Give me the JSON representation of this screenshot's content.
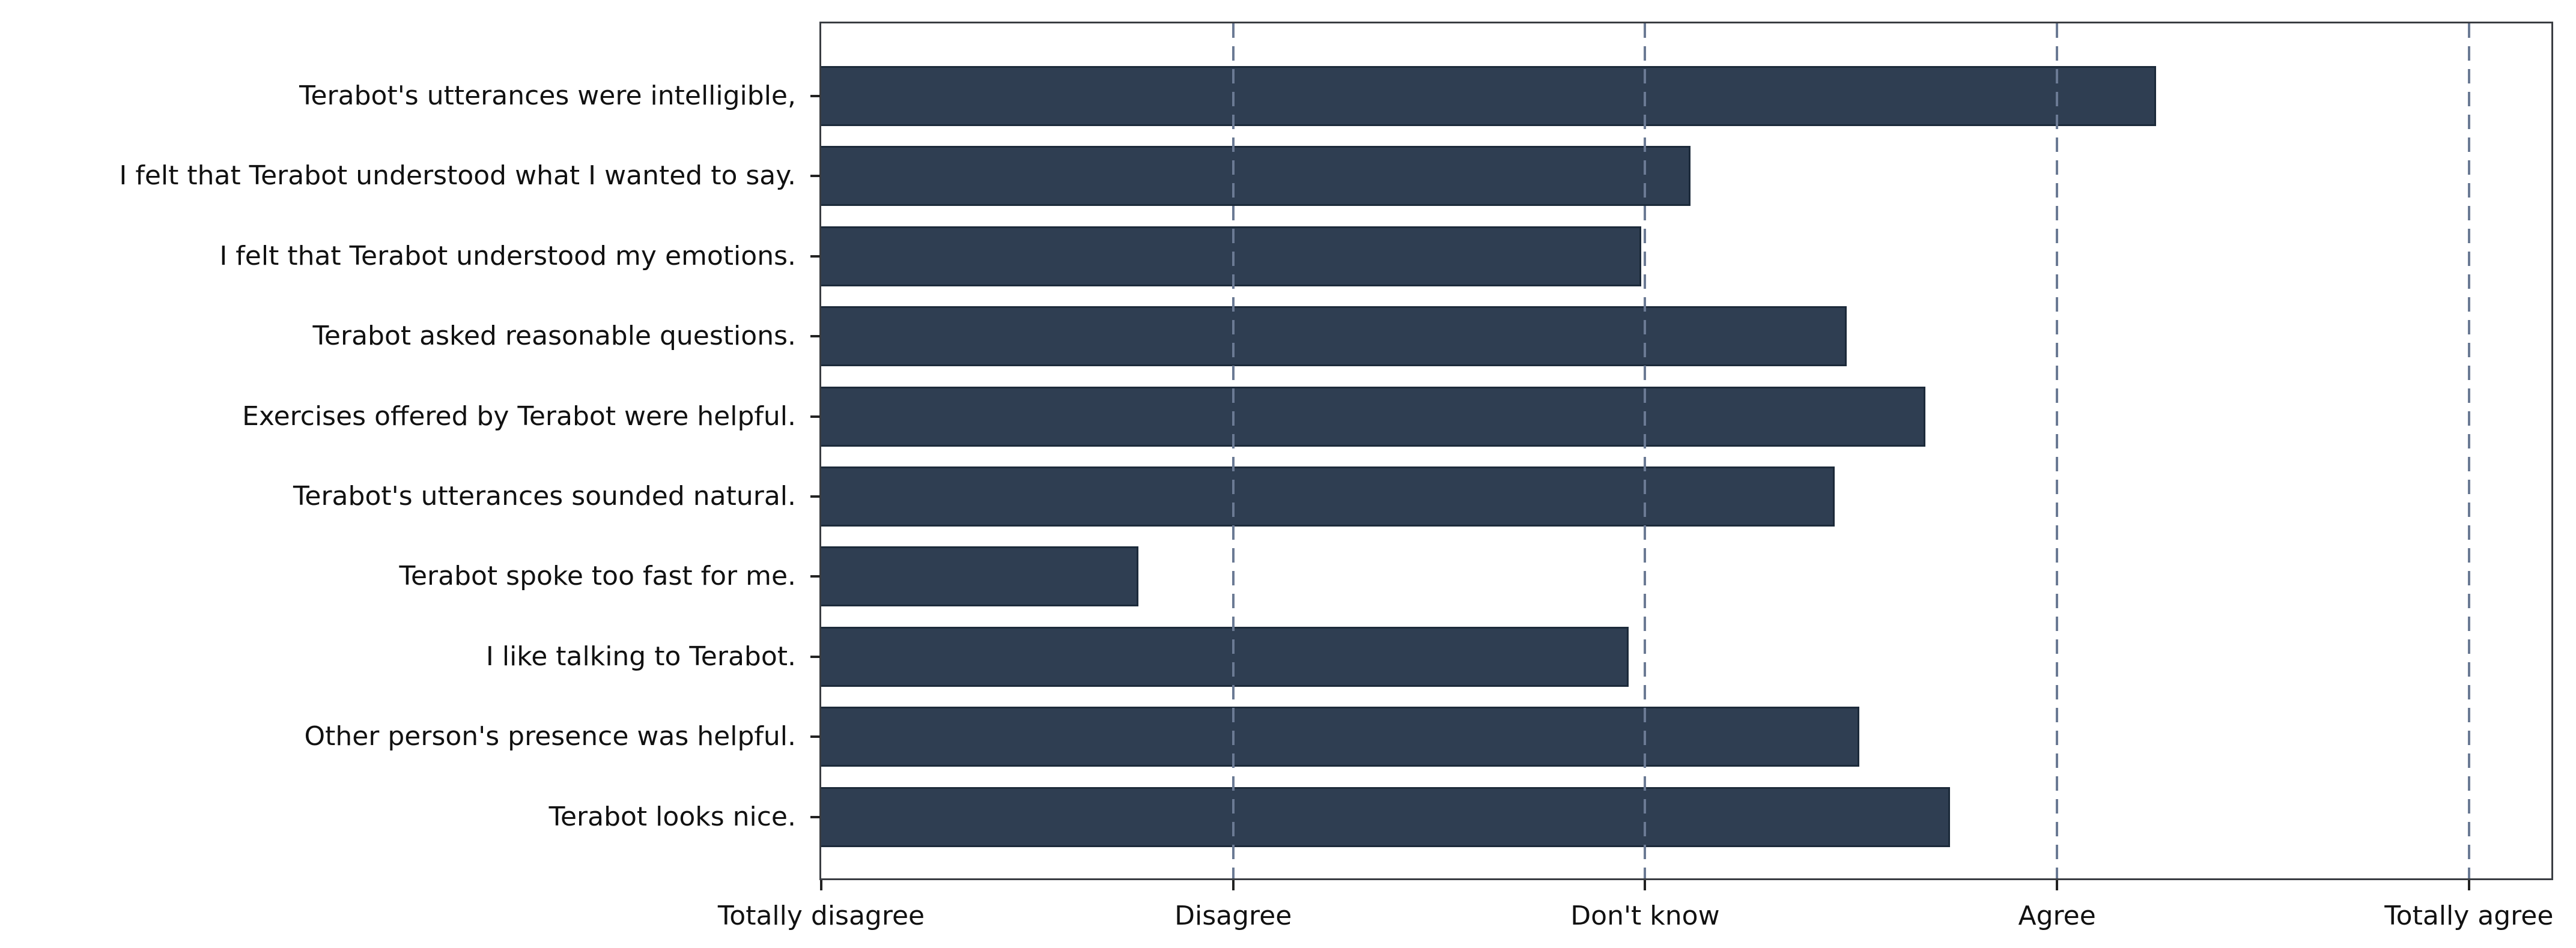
{
  "chart_data": {
    "type": "bar",
    "orientation": "horizontal",
    "title": "",
    "categories": [
      "Terabot's utterances were intelligible,",
      "I felt that Terabot understood what I wanted to say.",
      "I felt that Terabot understood my emotions.",
      "Terabot asked reasonable questions.",
      "Exercises offered by Terabot were helpful.",
      "Terabot's utterances sounded natural.",
      "Terabot spoke too fast for me.",
      "I like talking to Terabot.",
      "Other person's presence was helpful.",
      "Terabot looks nice."
    ],
    "values": [
      4.24,
      3.11,
      2.99,
      3.49,
      3.68,
      3.46,
      1.77,
      2.96,
      3.52,
      3.74
    ],
    "x_tick_labels": [
      "Totally disagree",
      "Disagree",
      "Don't know",
      "Agree",
      "Totally agree"
    ],
    "x_tick_values": [
      1,
      2,
      3,
      4,
      5
    ],
    "xlim": [
      1,
      5.2
    ],
    "grid": {
      "axis": "x",
      "style": "dashed",
      "gridline_values": [
        2,
        3,
        4,
        5
      ]
    },
    "legend_position": "none",
    "colors": {
      "bar_fill": "#2f3e52",
      "bar_edge": "#1c2a3a",
      "gridline": "#6b7a94",
      "spine": "#3a3d42",
      "tick_mark": "#222222",
      "label_text": "#111111",
      "background": "#ffffff"
    }
  }
}
